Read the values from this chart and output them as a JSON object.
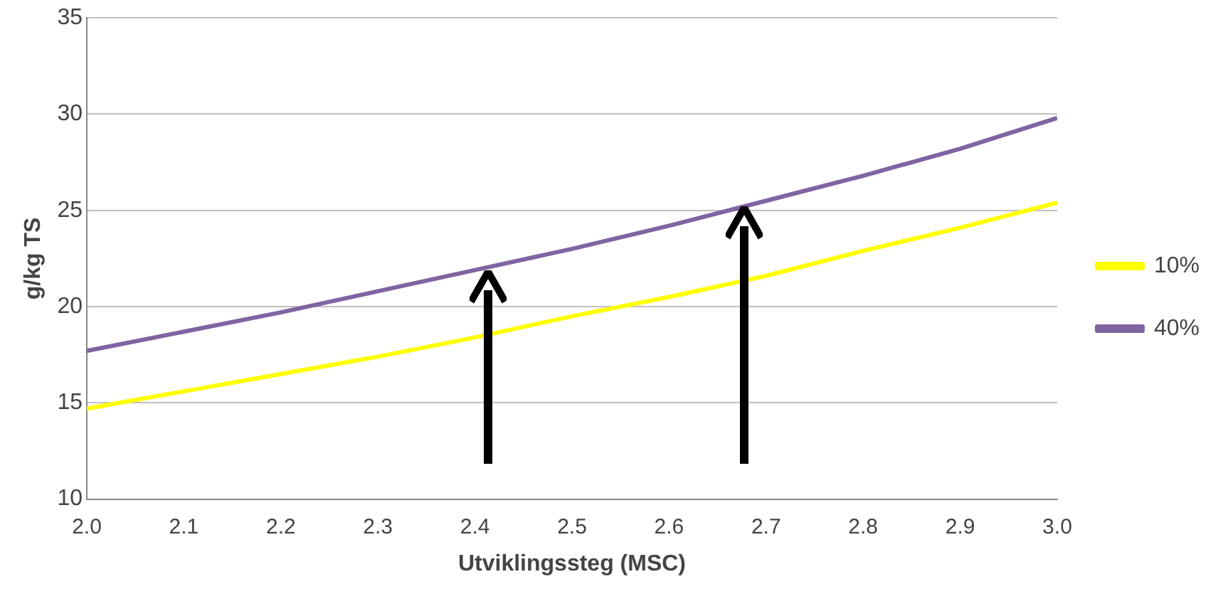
{
  "chart_data": {
    "type": "line",
    "xlabel": "Utviklingssteg (MSC)",
    "ylabel": "g/kg TS",
    "x": [
      2.0,
      2.1,
      2.2,
      2.3,
      2.4,
      2.5,
      2.6,
      2.7,
      2.8,
      2.9,
      3.0
    ],
    "series": [
      {
        "name": "10%",
        "color": "#ffff00",
        "values": [
          14.7,
          15.6,
          16.5,
          17.4,
          18.4,
          19.5,
          20.5,
          21.6,
          22.9,
          24.1,
          25.4
        ]
      },
      {
        "name": "40%",
        "color": "#8064a2",
        "values": [
          17.7,
          18.7,
          19.7,
          20.8,
          21.9,
          23.0,
          24.2,
          25.5,
          26.8,
          28.2,
          29.8
        ]
      }
    ],
    "xlim": [
      2.0,
      3.0
    ],
    "xticks": [
      {
        "value": 2.0,
        "label": "2.0"
      },
      {
        "value": 2.1,
        "label": "2.1"
      },
      {
        "value": 2.2,
        "label": "2.2"
      },
      {
        "value": 2.3,
        "label": "2.3"
      },
      {
        "value": 2.4,
        "label": "2.4"
      },
      {
        "value": 2.5,
        "label": "2.5"
      },
      {
        "value": 2.6,
        "label": "2.6"
      },
      {
        "value": 2.7,
        "label": "2.7"
      },
      {
        "value": 2.8,
        "label": "2.8"
      },
      {
        "value": 2.9,
        "label": "2.9"
      },
      {
        "value": 3.0,
        "label": "3.0"
      }
    ],
    "ylim": [
      10,
      35
    ],
    "yticks": [
      10,
      15,
      20,
      25,
      30,
      35
    ],
    "grid": "y",
    "legend": "right",
    "marker": "none",
    "line_style": "solid"
  }
}
